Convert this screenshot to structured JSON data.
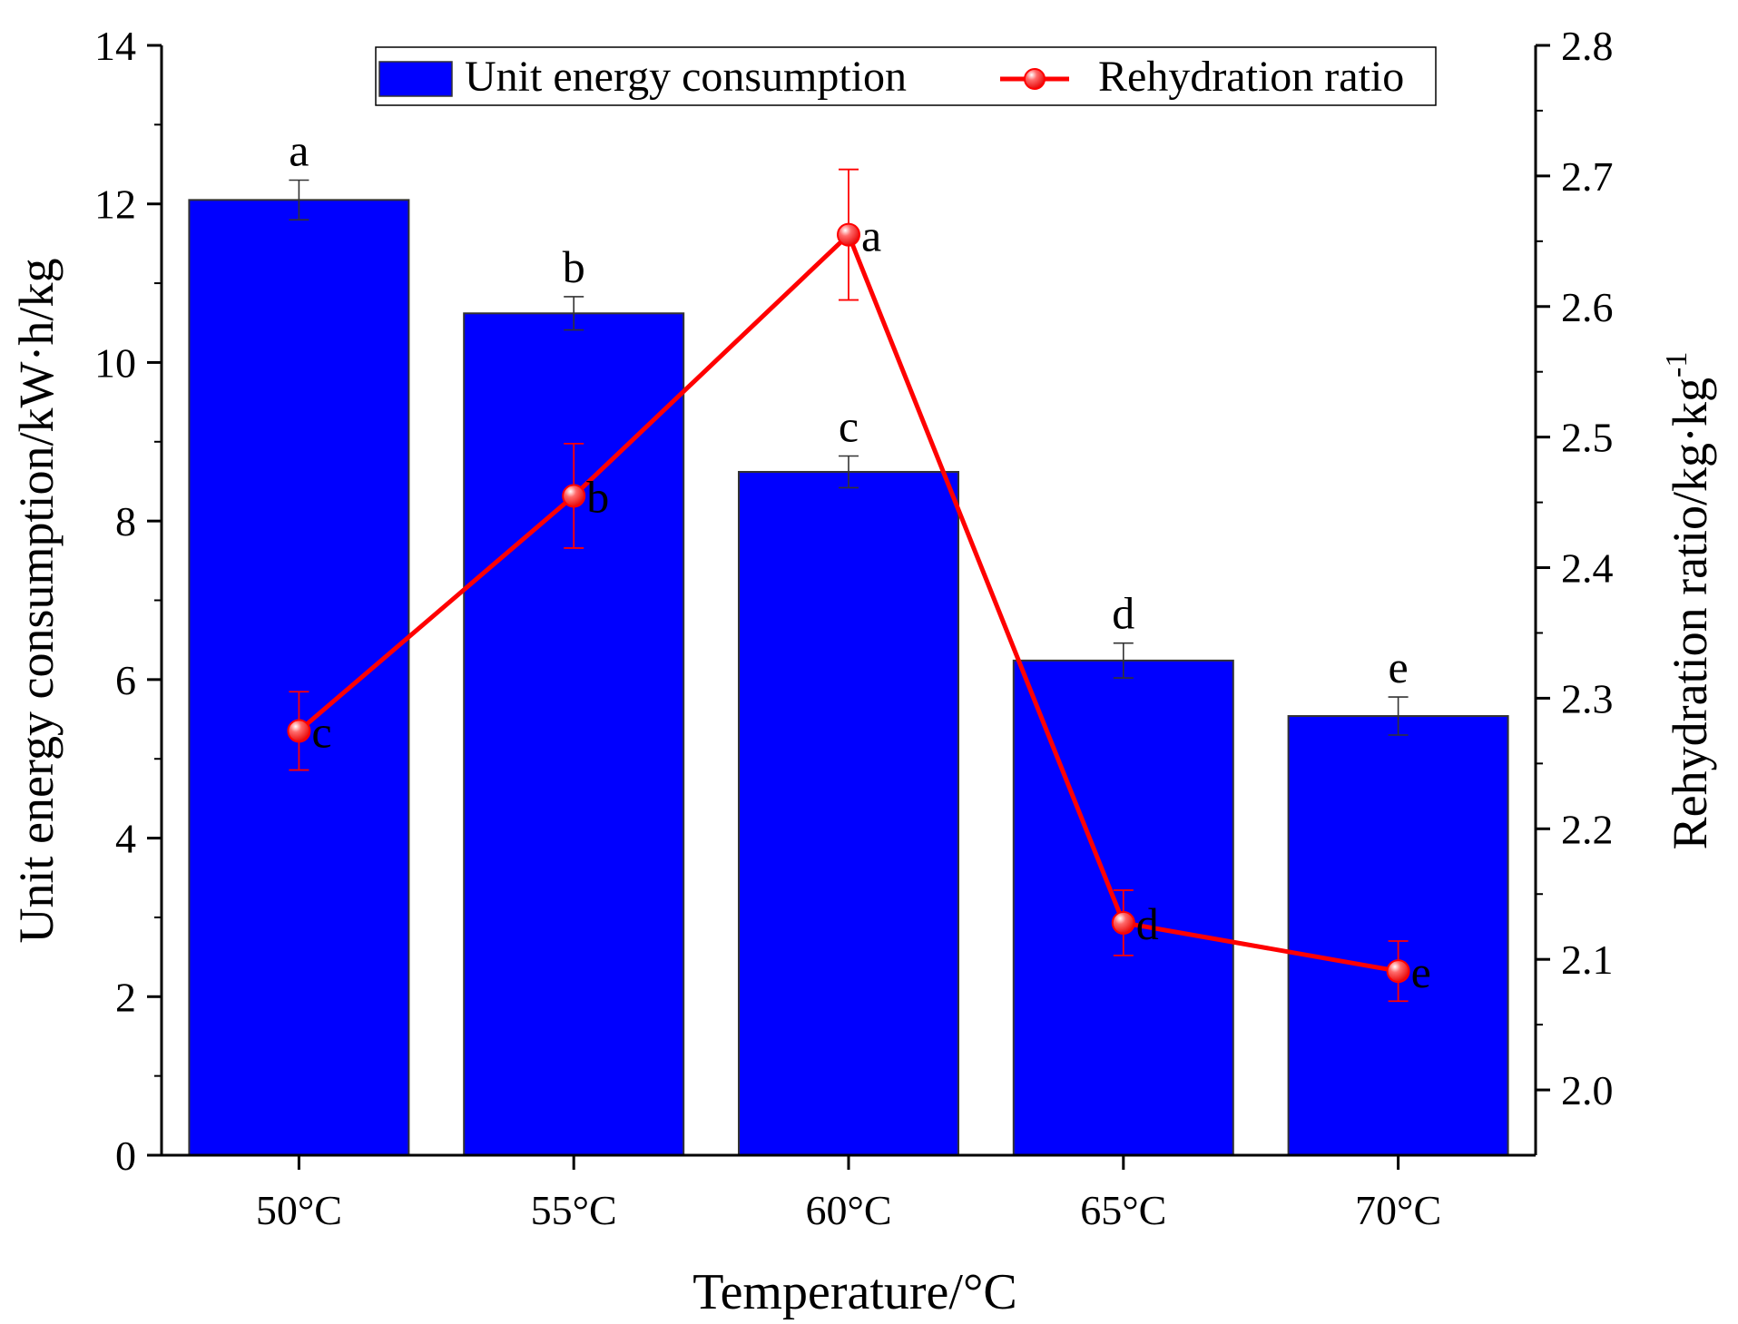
{
  "chart_data": {
    "type": "bar",
    "categories": [
      "50°C",
      "55°C",
      "60°C",
      "65°C",
      "70°C"
    ],
    "xlabel": "Temperature/°C",
    "ylabel": "Unit energy consumption/kW·h/kg",
    "ylabel2": "Rehydration ratio/kg·kg",
    "ylabel2_sup": "-1",
    "ylim": [
      0,
      14
    ],
    "y_ticks": [
      0,
      2,
      4,
      6,
      8,
      10,
      12,
      14
    ],
    "y2lim": [
      1.95,
      2.8
    ],
    "y2_ticks": [
      2.0,
      2.1,
      2.2,
      2.3,
      2.4,
      2.5,
      2.6,
      2.7,
      2.8
    ],
    "y2_tick_labels": [
      "2.0",
      "2.1",
      "2.2",
      "2.3",
      "2.4",
      "2.5",
      "2.6",
      "2.7",
      "2.8"
    ],
    "legend_position": "top",
    "series": [
      {
        "name": "Unit energy consumption",
        "type": "bar",
        "axis": "left",
        "color": "#0000ff",
        "values": [
          12.05,
          10.62,
          8.62,
          6.24,
          5.54
        ],
        "errors": [
          0.25,
          0.21,
          0.2,
          0.22,
          0.24
        ],
        "letters": [
          "a",
          "b",
          "c",
          "d",
          "e"
        ]
      },
      {
        "name": "Rehydration ratio",
        "type": "line",
        "axis": "right",
        "color": "#ff0000",
        "values": [
          2.275,
          2.455,
          2.655,
          2.128,
          2.091
        ],
        "errors": [
          0.03,
          0.04,
          0.05,
          0.025,
          0.023
        ],
        "letters": [
          "c",
          "b",
          "a",
          "d",
          "e"
        ]
      }
    ]
  }
}
